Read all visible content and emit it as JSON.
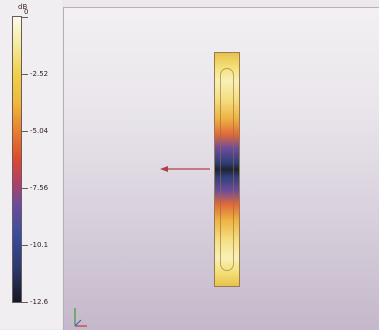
{
  "legend": {
    "unit": "dB",
    "ticks": [
      {
        "label": "0",
        "value": 0
      },
      {
        "label": "-2.52",
        "value": -2.52
      },
      {
        "label": "-5.04",
        "value": -5.04
      },
      {
        "label": "-7.56",
        "value": -7.56
      },
      {
        "label": "-10.1",
        "value": -10.1
      },
      {
        "label": "-12.6",
        "value": -12.6
      }
    ]
  },
  "colors": {
    "scale_top": "#fbfbe6",
    "scale_mid": "#da4a2e",
    "scale_bottom": "#151923",
    "arrow": "#b04048",
    "axis_green": "#3a9a3a",
    "axis_red": "#c83a3a"
  },
  "icons": {
    "direction_arrow": "arrow-left-icon",
    "axis_triad": "xyz-axis-icon"
  }
}
